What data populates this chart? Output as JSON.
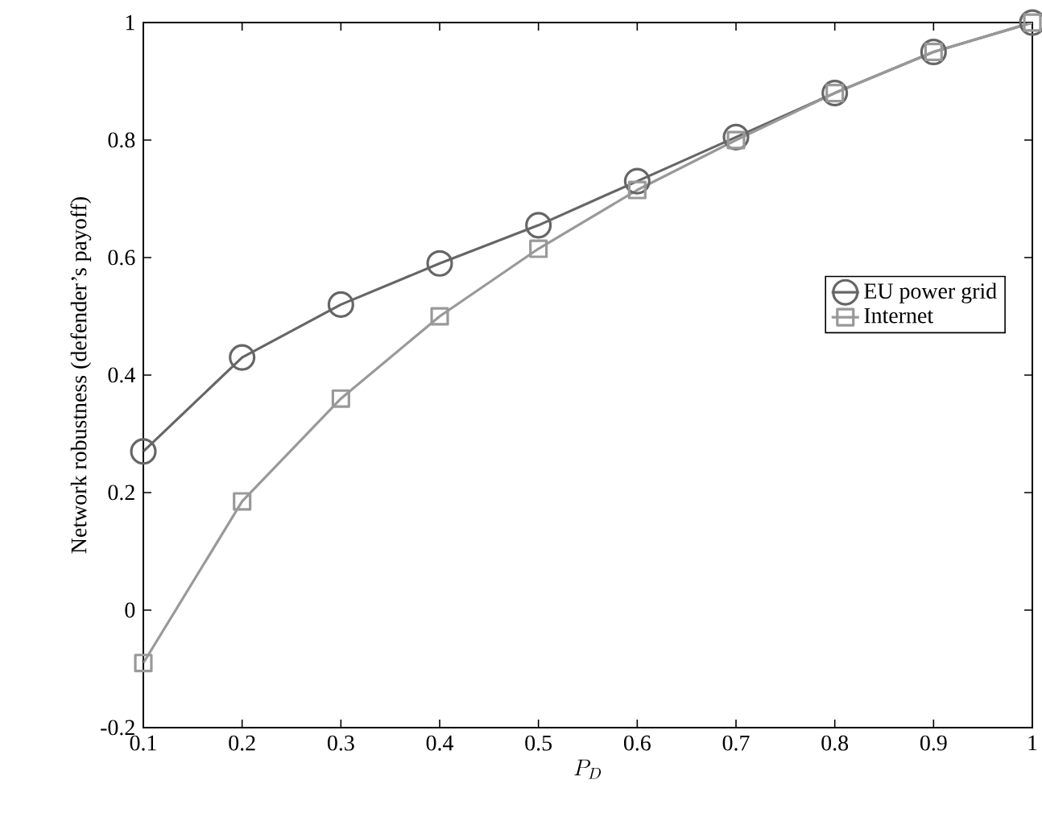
{
  "chart_data": {
    "type": "line",
    "xlabel": "P_D",
    "ylabel": "Network robustness (defender’s payoff)",
    "x": [
      0.1,
      0.2,
      0.3,
      0.4,
      0.5,
      0.6,
      0.7,
      0.8,
      0.9,
      1.0
    ],
    "series": [
      {
        "name": "EU power grid",
        "color": "#666666",
        "marker": "circle",
        "values": [
          0.27,
          0.43,
          0.52,
          0.59,
          0.655,
          0.73,
          0.805,
          0.88,
          0.95,
          1.0
        ]
      },
      {
        "name": "Internet",
        "color": "#999999",
        "marker": "square",
        "values": [
          -0.09,
          0.185,
          0.36,
          0.5,
          0.615,
          0.715,
          0.8,
          0.88,
          0.95,
          1.0
        ]
      }
    ],
    "xlim": [
      0.1,
      1
    ],
    "ylim": [
      -0.2,
      1
    ],
    "xticks": [
      0.1,
      0.2,
      0.3,
      0.4,
      0.5,
      0.6,
      0.7,
      0.8,
      0.9,
      1
    ],
    "yticks": [
      -0.2,
      0,
      0.2,
      0.4,
      0.6,
      0.8,
      1
    ],
    "grid": false,
    "legend": "right",
    "line_style": "solid"
  }
}
